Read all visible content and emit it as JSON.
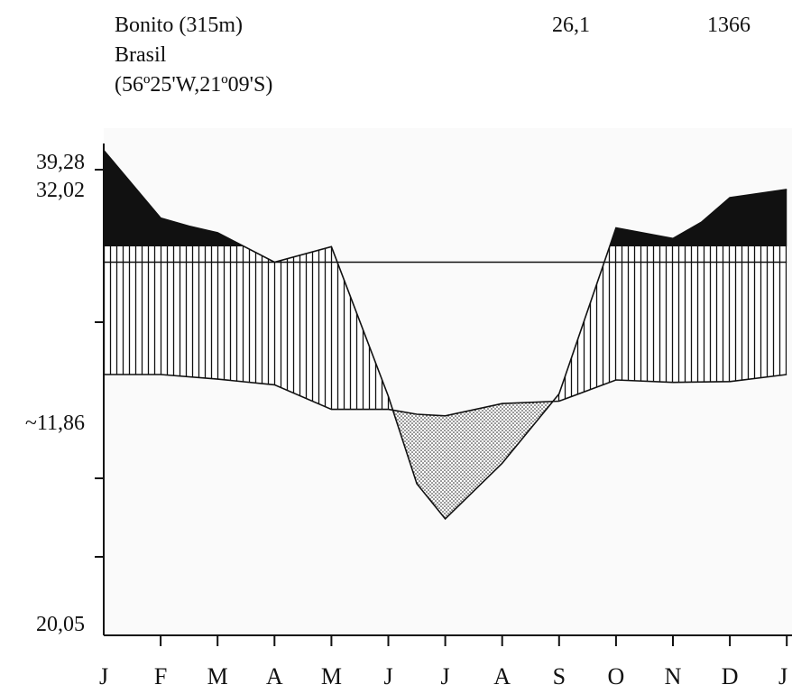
{
  "chart_data": {
    "type": "area",
    "station": {
      "name": "Bonito (315m)",
      "country": "Brasil",
      "coords": "(56º25'W,21º09'S)"
    },
    "mean_temperature": "26,1",
    "annual_precipitation": "1366",
    "y_tick_labels": [
      "39,28",
      "32,02",
      "~11,86",
      "20,05"
    ],
    "x_tick_labels": [
      "J",
      "F",
      "M",
      "A",
      "M",
      "J",
      "J",
      "A",
      "S",
      "O",
      "N",
      "D",
      "J"
    ],
    "precipitation_curve": [
      [
        0,
        39.28
      ],
      [
        1,
        31.0
      ],
      [
        1.5,
        30.0
      ],
      [
        2,
        29.2
      ],
      [
        3,
        25.6
      ],
      [
        4,
        27.5
      ],
      [
        5,
        9.2
      ],
      [
        5.5,
        -1.5
      ],
      [
        6,
        -5.8
      ],
      [
        7,
        1.0
      ],
      [
        8,
        9.5
      ],
      [
        9,
        29.8
      ],
      [
        10,
        28.5
      ],
      [
        10.5,
        30.5
      ],
      [
        11,
        33.5
      ],
      [
        12,
        34.5
      ]
    ],
    "temperature_curve": [
      [
        0,
        11.86
      ],
      [
        1,
        11.86
      ],
      [
        2,
        11.3
      ],
      [
        3,
        10.6
      ],
      [
        4,
        7.6
      ],
      [
        5,
        7.6
      ],
      [
        5.5,
        7.0
      ],
      [
        6,
        6.8
      ],
      [
        7,
        8.3
      ],
      [
        8,
        8.6
      ],
      [
        9,
        11.2
      ],
      [
        10,
        10.9
      ],
      [
        11,
        11.0
      ],
      [
        12,
        11.86
      ]
    ],
    "threshold_line": 25.6,
    "ylim": [
      -20.05,
      42.0
    ]
  }
}
